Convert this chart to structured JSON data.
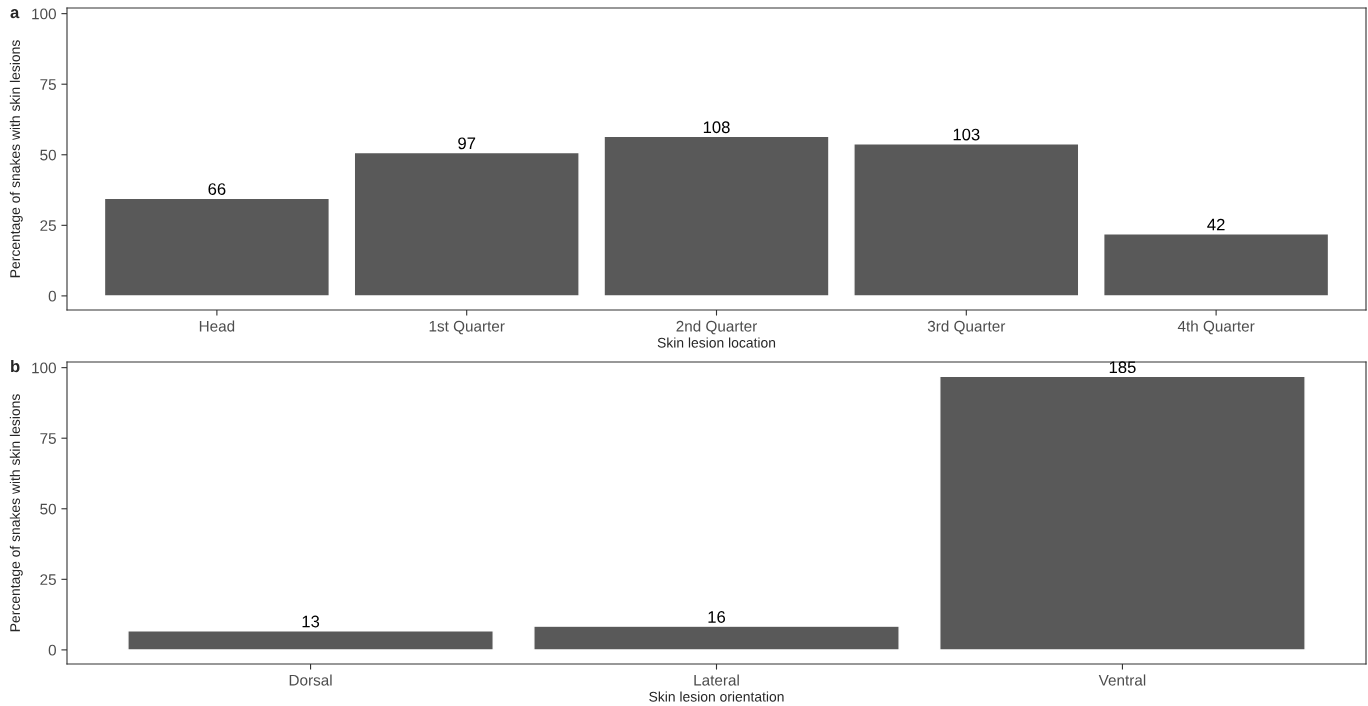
{
  "chart_data": [
    {
      "type": "bar",
      "title": "a",
      "xlabel": "Skin lesion location",
      "ylabel": "Percentage of snakes with skin lesions",
      "categories": [
        "Head",
        "1st Quarter",
        "2nd Quarter",
        "3rd Quarter",
        "4th Quarter"
      ],
      "values": [
        34.6,
        50.8,
        56.5,
        53.9,
        22.0
      ],
      "color": "#595959",
      "ylim": [
        -5,
        102
      ],
      "yticks": [
        0,
        25,
        50,
        75,
        100
      ],
      "grid": false,
      "annotations": [
        {
          "text": "66",
          "x": "Head",
          "y": 34.6
        },
        {
          "text": "97",
          "x": "1st Quarter",
          "y": 50.8
        },
        {
          "text": "108",
          "x": "2nd Quarter",
          "y": 56.5
        },
        {
          "text": "103",
          "x": "3rd Quarter",
          "y": 53.9
        },
        {
          "text": "42",
          "x": "4th Quarter",
          "y": 22.0
        }
      ]
    },
    {
      "type": "bar",
      "title": "b",
      "xlabel": "Skin lesion orientation",
      "ylabel": "Percentage of snakes with skin lesions",
      "categories": [
        "Dorsal",
        "Lateral",
        "Ventral"
      ],
      "values": [
        6.8,
        8.4,
        96.9
      ],
      "color": "#595959",
      "ylim": [
        -5,
        102
      ],
      "yticks": [
        0,
        25,
        50,
        75,
        100
      ],
      "grid": false,
      "annotations": [
        {
          "text": "13",
          "x": "Dorsal",
          "y": 6.8
        },
        {
          "text": "16",
          "x": "Lateral",
          "y": 8.4
        },
        {
          "text": "185",
          "x": "Ventral",
          "y": 96.9
        }
      ]
    }
  ]
}
